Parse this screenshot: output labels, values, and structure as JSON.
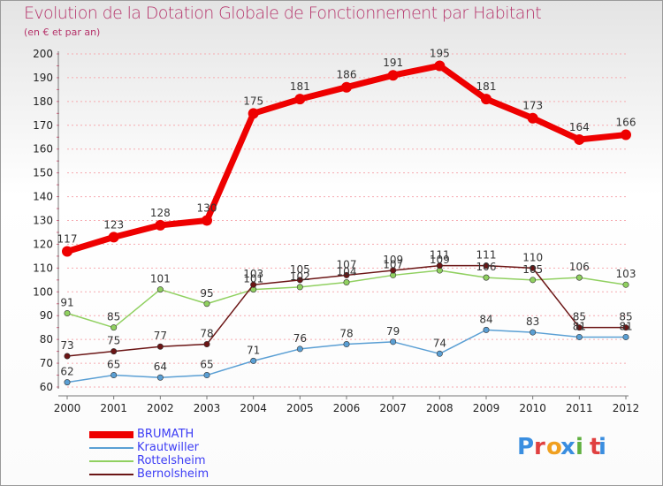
{
  "title": "Evolution de la Dotation Globale de Fonctionnement par Habitant",
  "subtitle": "(en € et par an)",
  "logo": "Proxiti",
  "colors": {
    "title": "#b5336a",
    "axis_text": "#222222",
    "legend_text": "#3d3df5",
    "grid": "#f6aab0"
  },
  "chart_data": {
    "type": "line",
    "title": "Evolution de la Dotation Globale de Fonctionnement par Habitant",
    "subtitle": "(en € et par an)",
    "xlabel": "",
    "ylabel": "",
    "x": [
      "2000",
      "2001",
      "2002",
      "2003",
      "2004",
      "2005",
      "2006",
      "2007",
      "2008",
      "2009",
      "2010",
      "2011",
      "2012"
    ],
    "ylim": [
      60,
      200
    ],
    "yticks": [
      60,
      70,
      80,
      90,
      100,
      110,
      120,
      130,
      140,
      150,
      160,
      170,
      180,
      190,
      200
    ],
    "grid": "horizontal dashed",
    "legend_position": "bottom-left",
    "series": [
      {
        "name": "BRUMATH",
        "color": "#ee0000",
        "values": [
          117,
          123,
          128,
          130,
          175,
          181,
          186,
          191,
          195,
          181,
          173,
          164,
          166
        ],
        "labels": [
          "117",
          "123",
          "128",
          "130",
          "175",
          "181",
          "186",
          "191",
          "195",
          "181",
          "173",
          "164",
          "166"
        ]
      },
      {
        "name": "Krautwiller",
        "color": "#5a9fd4",
        "values": [
          62,
          65,
          64,
          65,
          71,
          76,
          78,
          79,
          74,
          84,
          83,
          81,
          81
        ],
        "labels": [
          "62",
          "65",
          "64",
          "65",
          "71",
          "76",
          "78",
          "79",
          "74",
          "84",
          "83",
          "81",
          "81"
        ]
      },
      {
        "name": "Rottelsheim",
        "color": "#90d060",
        "values": [
          91,
          85,
          101,
          95,
          101,
          102,
          104,
          107,
          109,
          106,
          105,
          106,
          103
        ],
        "labels": [
          "91",
          "85",
          "101",
          "95",
          "101",
          "102",
          "104",
          "107",
          "109",
          "106",
          "105",
          "106",
          "103"
        ]
      },
      {
        "name": "Bernolsheim",
        "color": "#6b1515",
        "values": [
          73,
          75,
          77,
          78,
          103,
          105,
          107,
          109,
          111,
          111,
          110,
          85,
          85
        ],
        "labels": [
          "73",
          "75",
          "77",
          "78",
          "103",
          "105",
          "107",
          "109",
          "111",
          "111",
          "110",
          "85",
          "85"
        ]
      }
    ]
  }
}
